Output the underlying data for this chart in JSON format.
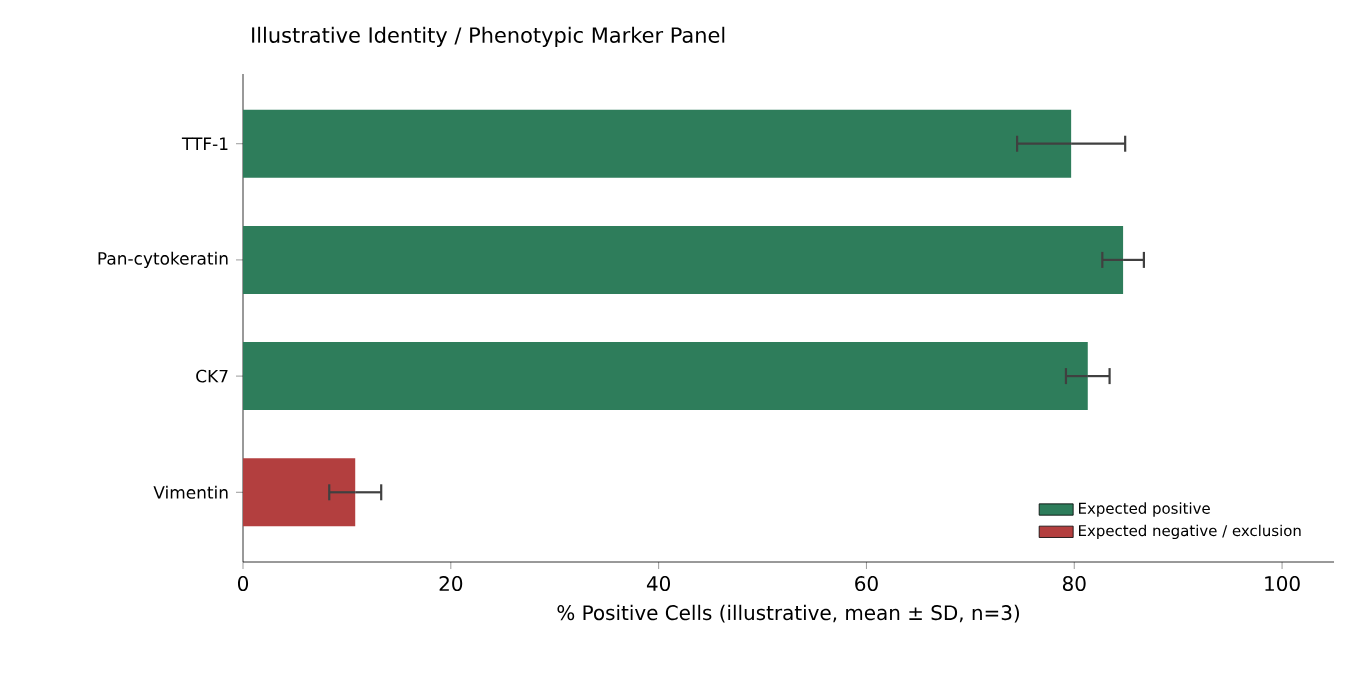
{
  "chart_data": {
    "type": "bar",
    "orientation": "horizontal",
    "title": "Illustrative Identity / Phenotypic Marker Panel",
    "xlabel": "% Positive Cells (illustrative, mean ± SD, n=3)",
    "categories": [
      "TTF-1",
      "Pan-cytokeratin",
      "CK7",
      "Vimentin"
    ],
    "series": [
      {
        "name": "Expected positive",
        "color": "#2e7d5b",
        "values": [
          79.7,
          84.7,
          81.3,
          null
        ],
        "errors": [
          5.2,
          2.0,
          2.1,
          null
        ]
      },
      {
        "name": "Expected negative / exclusion",
        "color": "#b33f3f",
        "values": [
          null,
          null,
          null,
          10.8
        ],
        "errors": [
          null,
          null,
          null,
          2.5
        ]
      }
    ],
    "xlim": [
      0,
      105
    ],
    "xticks": [
      0,
      20,
      40,
      60,
      80,
      100
    ],
    "legend": "bottom right"
  }
}
